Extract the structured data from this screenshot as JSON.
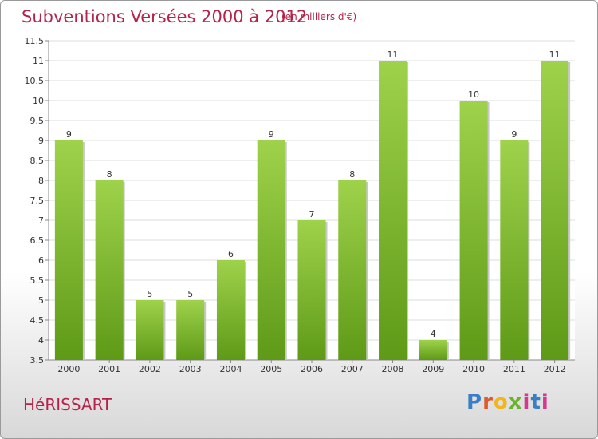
{
  "header": {
    "title": "Subventions Versées 2000 à 2012",
    "subtitle": "(en milliers d'€)"
  },
  "footer": {
    "town": "HéRISSART",
    "logo": "Proxiti"
  },
  "colors": {
    "bar_light": "#9fd24b",
    "bar_dark": "#5e9a17",
    "title": "#b5224a"
  },
  "chart_data": {
    "type": "bar",
    "categories": [
      "2000",
      "2001",
      "2002",
      "2003",
      "2004",
      "2005",
      "2006",
      "2007",
      "2008",
      "2009",
      "2010",
      "2011",
      "2012"
    ],
    "values": [
      9,
      8,
      5,
      5,
      6,
      9,
      7,
      8,
      11,
      4,
      10,
      9,
      11
    ],
    "ylim": [
      3.5,
      11.5
    ],
    "yticks": [
      3.5,
      4,
      4.5,
      5,
      5.5,
      6,
      6.5,
      7,
      7.5,
      8,
      8.5,
      9,
      9.5,
      10,
      10.5,
      11,
      11.5
    ],
    "grid": true,
    "data_labels": true
  }
}
